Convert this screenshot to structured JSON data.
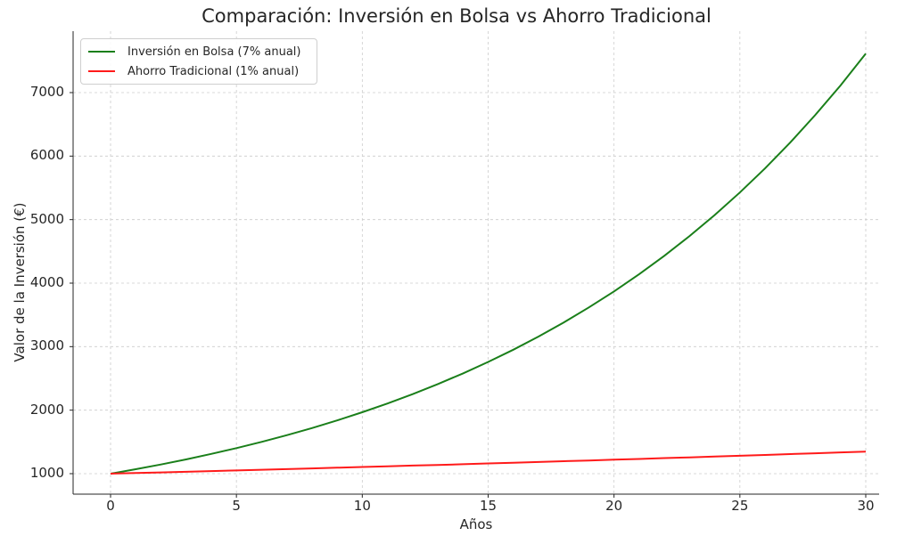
{
  "chart_data": {
    "type": "line",
    "title": "Comparación: Inversión en Bolsa vs Ahorro Tradicional",
    "xlabel": "Años",
    "ylabel": "Valor de la Inversión (€)",
    "xlim": [
      -1.5,
      31.5
    ],
    "ylim": [
      700,
      7930
    ],
    "xticks": [
      0,
      5,
      10,
      15,
      20,
      25,
      30
    ],
    "yticks": [
      1000,
      2000,
      3000,
      4000,
      5000,
      6000,
      7000
    ],
    "grid": true,
    "legend_position": "upper left",
    "x": [
      0,
      1,
      2,
      3,
      4,
      5,
      6,
      7,
      8,
      9,
      10,
      11,
      12,
      13,
      14,
      15,
      16,
      17,
      18,
      19,
      20,
      21,
      22,
      23,
      24,
      25,
      26,
      27,
      28,
      29,
      30
    ],
    "series": [
      {
        "name": "Inversión en Bolsa (7% anual)",
        "color": "#1a7f1a",
        "values": [
          1000,
          1070,
          1145,
          1225,
          1311,
          1403,
          1501,
          1606,
          1718,
          1838,
          1967,
          2105,
          2252,
          2410,
          2579,
          2759,
          2952,
          3159,
          3380,
          3617,
          3870,
          4141,
          4430,
          4741,
          5072,
          5427,
          5807,
          6214,
          6649,
          7114,
          7612
        ]
      },
      {
        "name": "Ahorro Tradicional (1% anual)",
        "color": "#ff1a1a",
        "values": [
          1000,
          1010,
          1020,
          1030,
          1041,
          1051,
          1062,
          1072,
          1083,
          1094,
          1105,
          1116,
          1127,
          1138,
          1149,
          1161,
          1173,
          1184,
          1196,
          1208,
          1220,
          1232,
          1245,
          1257,
          1270,
          1282,
          1295,
          1308,
          1321,
          1335,
          1348
        ]
      }
    ]
  }
}
